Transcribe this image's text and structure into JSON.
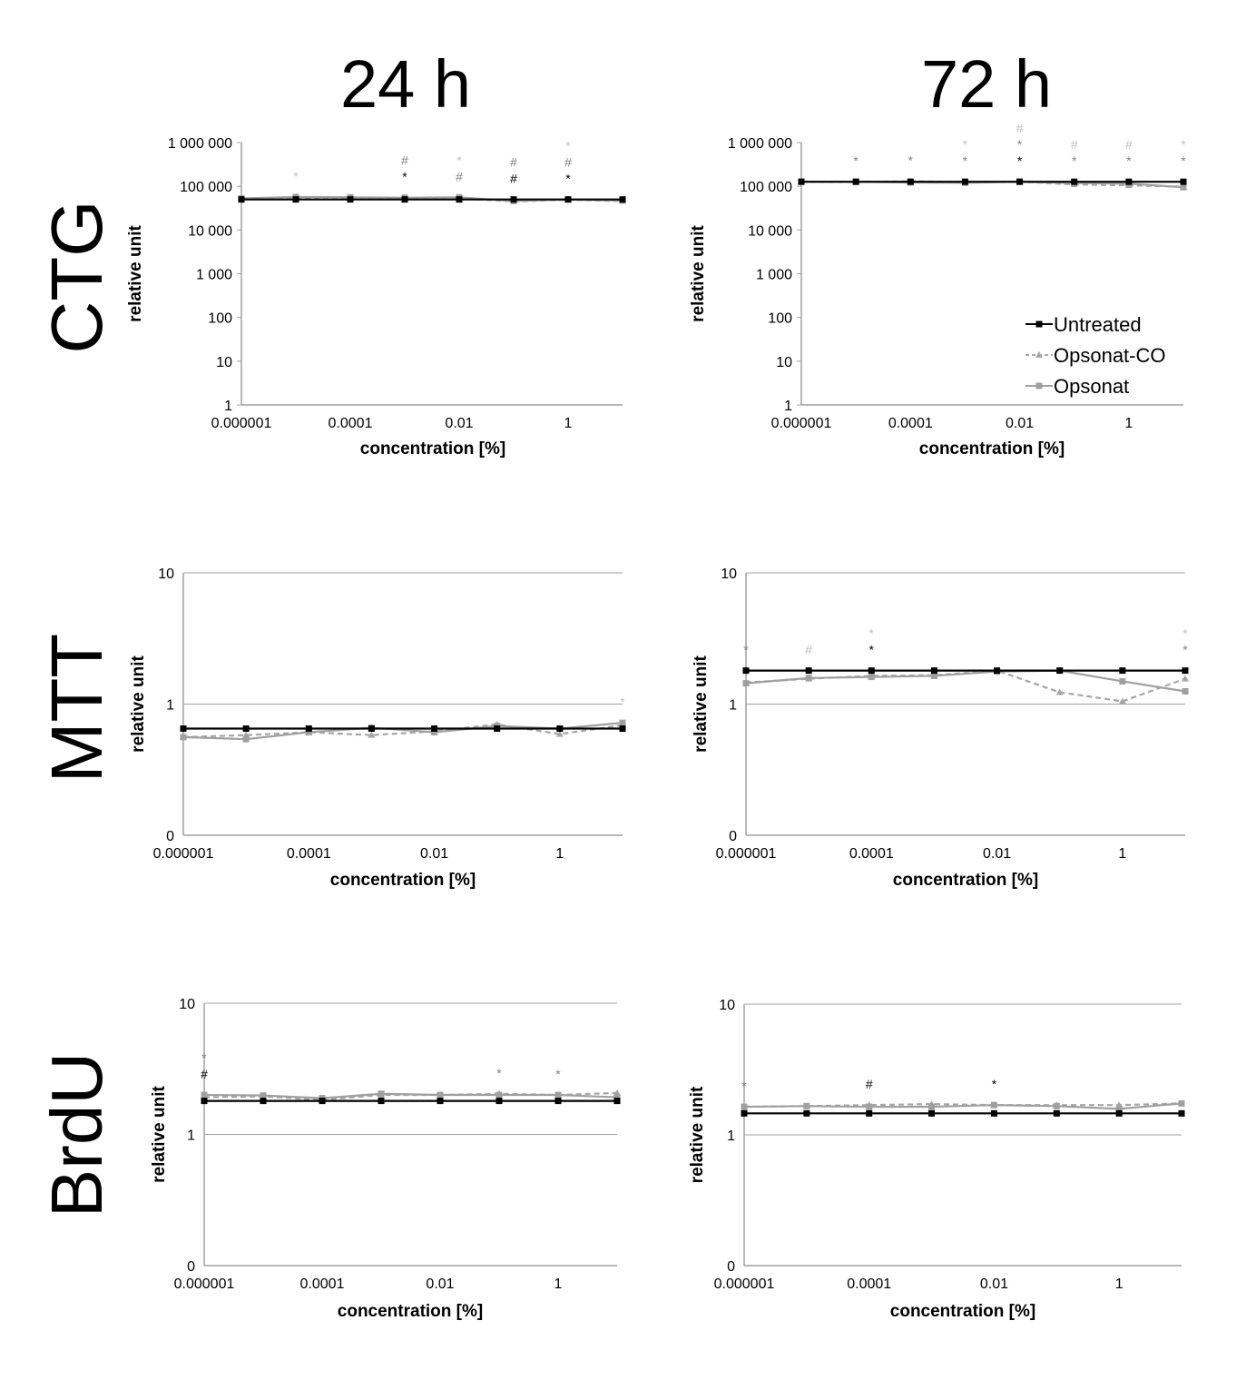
{
  "column_titles": [
    "24 h",
    "72 h"
  ],
  "row_titles": [
    "CTG",
    "MTT",
    "BrdU"
  ],
  "colors": {
    "Untreated": "#000000",
    "Opsonat-CO": "#a6a6a6",
    "Opsonat": "#a0a0a0",
    "ann_black": "#000000",
    "ann_mid": "#808080",
    "ann_light": "#c0c0c0",
    "grid": "#a0a0a0"
  },
  "legend": [
    "Untreated",
    "Opsonat-CO",
    "Opsonat"
  ],
  "chart_data": [
    {
      "id": "ctg-24h",
      "type": "line",
      "title": "CTG 24 h",
      "xlabel": "concentration [%]",
      "ylabel": "relative unit",
      "xscale": "log",
      "yscale": "log",
      "x": [
        1e-06,
        1e-05,
        0.0001,
        0.001,
        0.01,
        0.1,
        1,
        10
      ],
      "xticks": [
        1e-06,
        0.0001,
        0.01,
        1
      ],
      "xtick_labels": [
        "0.000001",
        "0.0001",
        "0.01",
        "1"
      ],
      "ylim": [
        1,
        1000000
      ],
      "yticks": [
        1,
        10,
        100,
        1000,
        10000,
        100000,
        1000000
      ],
      "ytick_labels": [
        "1",
        "10",
        "100",
        "1 000",
        "10 000",
        "100 000",
        "1 000 000"
      ],
      "grid": false,
      "series": [
        {
          "name": "Untreated",
          "values": [
            50000,
            50000,
            50000,
            50000,
            50000,
            50000,
            50000,
            50000
          ]
        },
        {
          "name": "Opsonat-CO",
          "values": [
            52000,
            54000,
            55000,
            53000,
            53000,
            45000,
            49000,
            46000
          ]
        },
        {
          "name": "Opsonat",
          "values": [
            53000,
            57000,
            56000,
            55000,
            56000,
            46000,
            50000,
            47000
          ]
        }
      ],
      "annotations": [
        {
          "x_index": 1,
          "symbols": [
            {
              "text": "*",
              "tone": "light"
            }
          ]
        },
        {
          "x_index": 3,
          "symbols": [
            {
              "text": "*",
              "tone": "black"
            },
            {
              "text": "#",
              "tone": "mid"
            }
          ]
        },
        {
          "x_index": 4,
          "symbols": [
            {
              "text": "#",
              "tone": "mid"
            },
            {
              "text": "*",
              "tone": "light"
            }
          ]
        },
        {
          "x_index": 5,
          "symbols": [
            {
              "text": "#",
              "tone": "black"
            },
            {
              "text": "#",
              "tone": "mid"
            }
          ]
        },
        {
          "x_index": 6,
          "symbols": [
            {
              "text": "*",
              "tone": "black"
            },
            {
              "text": "#",
              "tone": "mid"
            },
            {
              "text": "*",
              "tone": "light"
            }
          ]
        }
      ]
    },
    {
      "id": "ctg-72h",
      "type": "line",
      "title": "CTG 72 h",
      "xlabel": "concentration [%]",
      "ylabel": "relative unit",
      "xscale": "log",
      "yscale": "log",
      "x": [
        1e-06,
        1e-05,
        0.0001,
        0.001,
        0.01,
        0.1,
        1,
        10
      ],
      "xticks": [
        1e-06,
        0.0001,
        0.01,
        1
      ],
      "xtick_labels": [
        "0.000001",
        "0.0001",
        "0.01",
        "1"
      ],
      "ylim": [
        1,
        1000000
      ],
      "yticks": [
        1,
        10,
        100,
        1000,
        10000,
        100000,
        1000000
      ],
      "ytick_labels": [
        "1",
        "10",
        "100",
        "1 000",
        "10 000",
        "100 000",
        "1 000 000"
      ],
      "grid": false,
      "legend_position": "bottom-right",
      "series": [
        {
          "name": "Untreated",
          "values": [
            127000,
            127000,
            127000,
            127000,
            127000,
            127000,
            127000,
            127000
          ]
        },
        {
          "name": "Opsonat-CO",
          "values": [
            127000,
            125000,
            130000,
            125000,
            127000,
            110000,
            105000,
            98000
          ]
        },
        {
          "name": "Opsonat",
          "values": [
            127000,
            127000,
            122000,
            120000,
            127000,
            118000,
            115000,
            95000
          ]
        }
      ],
      "annotations": [
        {
          "x_index": 1,
          "symbols": [
            {
              "text": "*",
              "tone": "mid"
            }
          ]
        },
        {
          "x_index": 2,
          "symbols": [
            {
              "text": "*",
              "tone": "mid"
            }
          ]
        },
        {
          "x_index": 3,
          "symbols": [
            {
              "text": "*",
              "tone": "mid"
            },
            {
              "text": "*",
              "tone": "light"
            }
          ]
        },
        {
          "x_index": 4,
          "symbols": [
            {
              "text": "*",
              "tone": "black"
            },
            {
              "text": "*",
              "tone": "mid"
            },
            {
              "text": "#",
              "tone": "light"
            }
          ]
        },
        {
          "x_index": 5,
          "symbols": [
            {
              "text": "*",
              "tone": "mid"
            },
            {
              "text": "#",
              "tone": "light"
            }
          ]
        },
        {
          "x_index": 6,
          "symbols": [
            {
              "text": "*",
              "tone": "mid"
            },
            {
              "text": "#",
              "tone": "light"
            }
          ]
        },
        {
          "x_index": 7,
          "symbols": [
            {
              "text": "*",
              "tone": "mid"
            },
            {
              "text": "*",
              "tone": "light"
            }
          ]
        }
      ]
    },
    {
      "id": "mtt-24h",
      "type": "line",
      "title": "MTT 24 h",
      "xlabel": "concentration [%]",
      "ylabel": "relative unit",
      "xscale": "log",
      "yscale": "log",
      "x": [
        1e-06,
        1e-05,
        0.0001,
        0.001,
        0.01,
        0.1,
        1,
        10
      ],
      "xticks": [
        1e-06,
        0.0001,
        0.01,
        1
      ],
      "xtick_labels": [
        "0.000001",
        "0.0001",
        "0.01",
        "1"
      ],
      "ylim": [
        0.1,
        10
      ],
      "yticks": [
        0.1,
        1,
        10
      ],
      "ytick_labels": [
        "0",
        "1",
        "10"
      ],
      "grid": true,
      "series": [
        {
          "name": "Untreated",
          "values": [
            0.65,
            0.65,
            0.65,
            0.65,
            0.65,
            0.65,
            0.65,
            0.65
          ]
        },
        {
          "name": "Opsonat-CO",
          "values": [
            0.56,
            0.58,
            0.61,
            0.58,
            0.62,
            0.7,
            0.59,
            0.69
          ]
        },
        {
          "name": "Opsonat",
          "values": [
            0.56,
            0.54,
            0.61,
            0.66,
            0.61,
            0.68,
            0.65,
            0.72
          ]
        }
      ],
      "annotations": [
        {
          "x_index": 7,
          "symbols": [
            {
              "text": "*",
              "tone": "light"
            }
          ]
        }
      ]
    },
    {
      "id": "mtt-72h",
      "type": "line",
      "title": "MTT 72 h",
      "xlabel": "concentration [%]",
      "ylabel": "relative unit",
      "xscale": "log",
      "yscale": "log",
      "x": [
        1e-06,
        1e-05,
        0.0001,
        0.001,
        0.01,
        0.1,
        1,
        10
      ],
      "xticks": [
        1e-06,
        0.0001,
        0.01,
        1
      ],
      "xtick_labels": [
        "0.000001",
        "0.0001",
        "0.01",
        "1"
      ],
      "ylim": [
        0.1,
        10
      ],
      "yticks": [
        0.1,
        1,
        10
      ],
      "ytick_labels": [
        "0",
        "1",
        "10"
      ],
      "grid": true,
      "series": [
        {
          "name": "Untreated",
          "values": [
            1.8,
            1.8,
            1.8,
            1.8,
            1.8,
            1.8,
            1.8,
            1.8
          ]
        },
        {
          "name": "Opsonat-CO",
          "values": [
            1.46,
            1.56,
            1.64,
            1.66,
            1.8,
            1.23,
            1.05,
            1.56
          ]
        },
        {
          "name": "Opsonat",
          "values": [
            1.44,
            1.58,
            1.61,
            1.64,
            1.77,
            1.8,
            1.49,
            1.25
          ]
        }
      ],
      "annotations": [
        {
          "x_index": 0,
          "symbols": [
            {
              "text": "*",
              "tone": "mid"
            }
          ]
        },
        {
          "x_index": 1,
          "symbols": [
            {
              "text": "#",
              "tone": "light"
            }
          ]
        },
        {
          "x_index": 2,
          "symbols": [
            {
              "text": "*",
              "tone": "black"
            },
            {
              "text": "*",
              "tone": "light"
            }
          ]
        },
        {
          "x_index": 7,
          "symbols": [
            {
              "text": "*",
              "tone": "mid"
            },
            {
              "text": "*",
              "tone": "light"
            }
          ]
        }
      ]
    },
    {
      "id": "brdu-24h",
      "type": "line",
      "title": "BrdU 24 h",
      "xlabel": "concentration [%]",
      "ylabel": "relative unit",
      "xscale": "log",
      "yscale": "log",
      "x": [
        1e-06,
        1e-05,
        0.0001,
        0.001,
        0.01,
        0.1,
        1,
        10
      ],
      "xticks": [
        1e-06,
        0.0001,
        0.01,
        1
      ],
      "xtick_labels": [
        "0.000001",
        "0.0001",
        "0.01",
        "1"
      ],
      "ylim": [
        0.1,
        10
      ],
      "yticks": [
        0.1,
        1,
        10
      ],
      "ytick_labels": [
        "0",
        "1",
        "10"
      ],
      "grid": true,
      "series": [
        {
          "name": "Untreated",
          "values": [
            1.8,
            1.8,
            1.8,
            1.8,
            1.8,
            1.8,
            1.8,
            1.8
          ]
        },
        {
          "name": "Opsonat-CO",
          "values": [
            1.92,
            1.95,
            1.83,
            2.0,
            2.0,
            2.04,
            2.0,
            2.07
          ]
        },
        {
          "name": "Opsonat",
          "values": [
            2.0,
            1.98,
            1.89,
            2.04,
            2.0,
            2.0,
            2.0,
            1.92
          ]
        }
      ],
      "annotations": [
        {
          "x_index": 0,
          "symbols": [
            {
              "text": "#",
              "tone": "black"
            },
            {
              "text": "*",
              "tone": "mid"
            }
          ]
        },
        {
          "x_index": 5,
          "symbols": [
            {
              "text": "*",
              "tone": "mid"
            }
          ]
        },
        {
          "x_index": 6,
          "symbols": [
            {
              "text": "*",
              "tone": "mid"
            }
          ]
        }
      ]
    },
    {
      "id": "brdu-72h",
      "type": "line",
      "title": "BrdU 72 h",
      "xlabel": "concentration [%]",
      "ylabel": "relative unit",
      "xscale": "log",
      "yscale": "log",
      "x": [
        1e-06,
        1e-05,
        0.0001,
        0.001,
        0.01,
        0.1,
        1,
        10
      ],
      "xticks": [
        1e-06,
        0.0001,
        0.01,
        1
      ],
      "xtick_labels": [
        "0.000001",
        "0.0001",
        "0.01",
        "1"
      ],
      "ylim": [
        0.1,
        10
      ],
      "yticks": [
        0.1,
        1,
        10
      ],
      "ytick_labels": [
        "0",
        "1",
        "10"
      ],
      "grid": true,
      "series": [
        {
          "name": "Untreated",
          "values": [
            1.46,
            1.46,
            1.46,
            1.46,
            1.46,
            1.46,
            1.46,
            1.46
          ]
        },
        {
          "name": "Opsonat-CO",
          "values": [
            1.64,
            1.66,
            1.69,
            1.72,
            1.69,
            1.69,
            1.69,
            1.74
          ]
        },
        {
          "name": "Opsonat",
          "values": [
            1.64,
            1.66,
            1.64,
            1.64,
            1.69,
            1.66,
            1.58,
            1.74
          ]
        }
      ],
      "annotations": [
        {
          "x_index": 0,
          "symbols": [
            {
              "text": "*",
              "tone": "mid"
            }
          ]
        },
        {
          "x_index": 2,
          "symbols": [
            {
              "text": "#",
              "tone": "black"
            }
          ]
        },
        {
          "x_index": 4,
          "symbols": [
            {
              "text": "*",
              "tone": "black"
            }
          ]
        }
      ]
    }
  ]
}
